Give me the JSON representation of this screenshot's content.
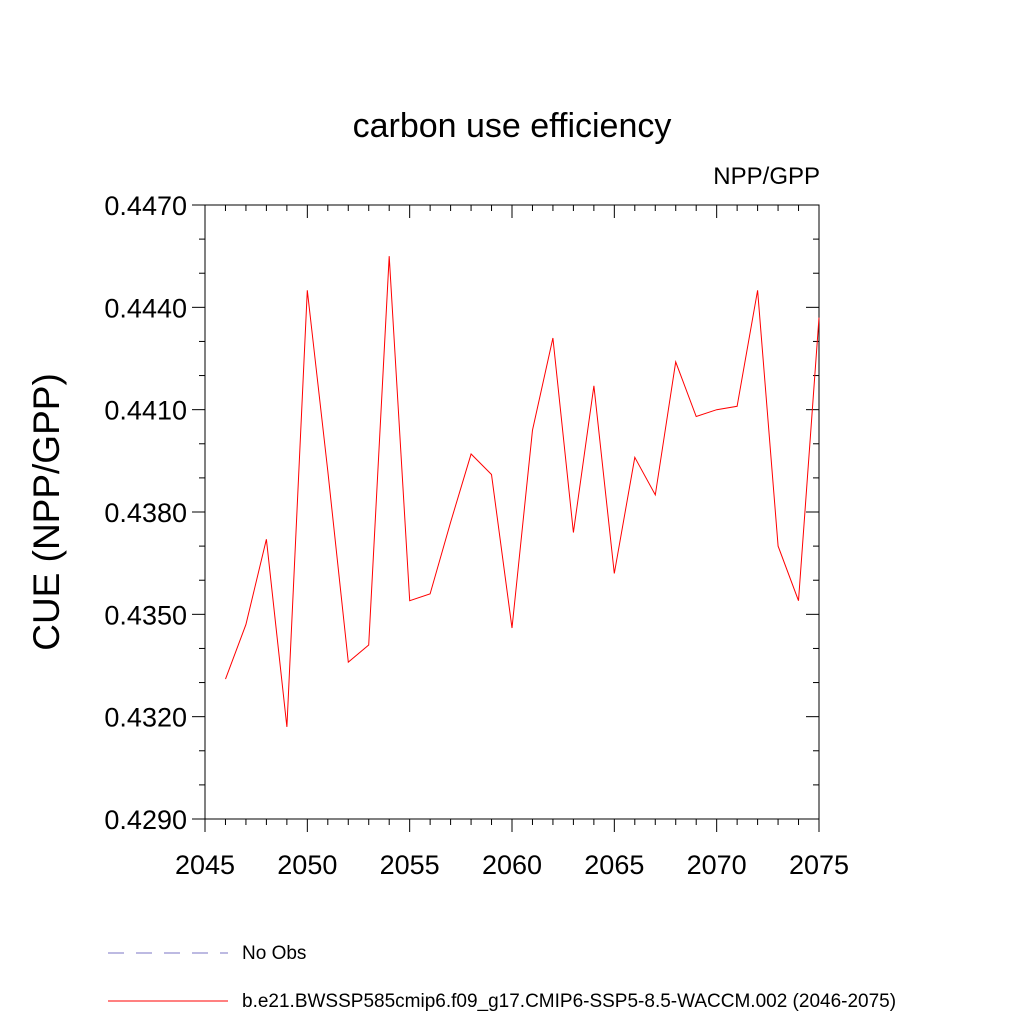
{
  "chart_data": {
    "type": "line",
    "title": "carbon use efficiency",
    "units_label": "NPP/GPP",
    "xlabel": "",
    "ylabel": "CUE  (NPP/GPP)",
    "xlim": [
      2045,
      2075
    ],
    "ylim": [
      0.429,
      0.447
    ],
    "xticks": [
      "2045",
      "2050",
      "2055",
      "2060",
      "2065",
      "2070",
      "2075"
    ],
    "yticks": [
      "0.4290",
      "0.4320",
      "0.4350",
      "0.4380",
      "0.4410",
      "0.4440",
      "0.4470"
    ],
    "grid": false,
    "legend_position": "bottom",
    "series": [
      {
        "name": "b.e21.BWSSP585cmip6.f09_g17.CMIP6-SSP5-8.5-WACCM.002 (2046-2075)",
        "color": "#ff0000",
        "style": "solid",
        "x": [
          2046,
          2047,
          2048,
          2049,
          2050,
          2051,
          2052,
          2053,
          2054,
          2055,
          2056,
          2057,
          2058,
          2059,
          2060,
          2061,
          2062,
          2063,
          2064,
          2065,
          2066,
          2067,
          2068,
          2069,
          2070,
          2071,
          2072,
          2073,
          2074,
          2075
        ],
        "values": [
          0.4331,
          0.4347,
          0.4372,
          0.4317,
          0.4445,
          0.4392,
          0.4336,
          0.4341,
          0.4455,
          0.4354,
          0.4356,
          0.4377,
          0.4397,
          0.4391,
          0.4346,
          0.4404,
          0.4431,
          0.4374,
          0.4417,
          0.4362,
          0.4396,
          0.4385,
          0.4424,
          0.4408,
          0.441,
          0.4411,
          0.4445,
          0.437,
          0.4354,
          0.4437
        ]
      }
    ],
    "legend": [
      {
        "label": "No Obs",
        "color": "#7b74c4",
        "style": "dashed"
      },
      {
        "label": "b.e21.BWSSP585cmip6.f09_g17.CMIP6-SSP5-8.5-WACCM.002 (2046-2075)",
        "color": "#ff0000",
        "style": "solid"
      }
    ]
  }
}
